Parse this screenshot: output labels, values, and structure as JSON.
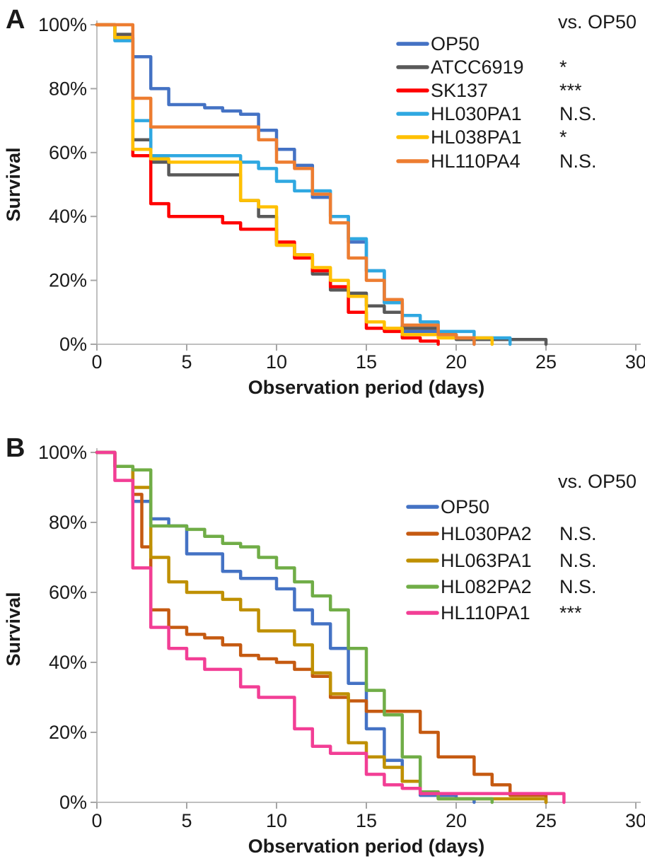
{
  "figure": {
    "background_color": "#ffffff",
    "axis_line_color": "#bfbfbf",
    "tick_color": "#a6a6a6",
    "text_color": "#1a1a1a"
  },
  "chart_data": [
    {
      "type": "line",
      "subtype": "kaplan-meier-step-survival",
      "panel_label": "A",
      "title": "",
      "xlabel": "Observation period (days)",
      "ylabel": "Survival",
      "xlim": [
        0,
        30
      ],
      "ylim": [
        0,
        100
      ],
      "x_tick_labels": [
        "0",
        "5",
        "10",
        "15",
        "20",
        "25",
        "30"
      ],
      "y_tick_labels": [
        "100%",
        "80%",
        "60%",
        "40%",
        "20%",
        "0%"
      ],
      "grid": "off",
      "legend_position": "upper right",
      "legend_header": "vs. OP50",
      "series": [
        {
          "name": "OP50",
          "color": "#4472C4",
          "significance": "",
          "steps": [
            [
              0,
              100
            ],
            [
              1,
              96
            ],
            [
              2,
              90
            ],
            [
              3,
              80
            ],
            [
              4,
              75
            ],
            [
              6,
              74
            ],
            [
              7,
              73
            ],
            [
              8,
              72
            ],
            [
              9,
              67
            ],
            [
              10,
              61
            ],
            [
              11,
              56
            ],
            [
              12,
              46
            ],
            [
              13,
              40
            ],
            [
              14,
              32
            ],
            [
              15,
              23
            ],
            [
              16,
              13
            ],
            [
              17,
              4
            ],
            [
              19,
              3
            ],
            [
              20,
              2
            ],
            [
              21,
              0
            ]
          ]
        },
        {
          "name": "ATCC6919",
          "color": "#595959",
          "significance": "*",
          "steps": [
            [
              0,
              100
            ],
            [
              1,
              97
            ],
            [
              2,
              64
            ],
            [
              3,
              57
            ],
            [
              4,
              53
            ],
            [
              8,
              45
            ],
            [
              9,
              40
            ],
            [
              10,
              31
            ],
            [
              11,
              28
            ],
            [
              12,
              22
            ],
            [
              13,
              17
            ],
            [
              14,
              16
            ],
            [
              15,
              12
            ],
            [
              16,
              10
            ],
            [
              17,
              5
            ],
            [
              19,
              3
            ],
            [
              20,
              1.5
            ],
            [
              25,
              0
            ]
          ]
        },
        {
          "name": "SK137",
          "color": "#FF0000",
          "significance": "***",
          "steps": [
            [
              0,
              100
            ],
            [
              1,
              96
            ],
            [
              2,
              59
            ],
            [
              3,
              44
            ],
            [
              4,
              40
            ],
            [
              7,
              38
            ],
            [
              8,
              36
            ],
            [
              10,
              32
            ],
            [
              11,
              27
            ],
            [
              12,
              23
            ],
            [
              13,
              18
            ],
            [
              14,
              10
            ],
            [
              15,
              5
            ],
            [
              16,
              4
            ],
            [
              17,
              2
            ],
            [
              18,
              1
            ],
            [
              19,
              0
            ]
          ]
        },
        {
          "name": "HL030PA1",
          "color": "#2FA8E1",
          "significance": "N.S.",
          "steps": [
            [
              0,
              100
            ],
            [
              1,
              95
            ],
            [
              2,
              70
            ],
            [
              3,
              59
            ],
            [
              8,
              57
            ],
            [
              9,
              55
            ],
            [
              10,
              51
            ],
            [
              11,
              48
            ],
            [
              13,
              40
            ],
            [
              14,
              33
            ],
            [
              15,
              23
            ],
            [
              16,
              13
            ],
            [
              17,
              9
            ],
            [
              18,
              7
            ],
            [
              19,
              4
            ],
            [
              21,
              2
            ],
            [
              23,
              0
            ]
          ]
        },
        {
          "name": "HL038PA1",
          "color": "#FFC000",
          "significance": "*",
          "steps": [
            [
              0,
              100
            ],
            [
              1,
              96
            ],
            [
              2,
              61
            ],
            [
              3,
              58
            ],
            [
              4,
              57
            ],
            [
              8,
              45
            ],
            [
              9,
              43
            ],
            [
              10,
              31
            ],
            [
              11,
              28
            ],
            [
              12,
              24
            ],
            [
              13,
              20
            ],
            [
              14,
              15
            ],
            [
              15,
              7
            ],
            [
              16,
              5
            ],
            [
              17,
              3
            ],
            [
              19,
              2
            ],
            [
              22,
              0
            ]
          ]
        },
        {
          "name": "HL110PA4",
          "color": "#ED7D31",
          "significance": "N.S.",
          "steps": [
            [
              0,
              100
            ],
            [
              2,
              77
            ],
            [
              3,
              68
            ],
            [
              9,
              64
            ],
            [
              10,
              57
            ],
            [
              11,
              55
            ],
            [
              12,
              47
            ],
            [
              13,
              38
            ],
            [
              14,
              27
            ],
            [
              15,
              20
            ],
            [
              16,
              14
            ],
            [
              17,
              6
            ],
            [
              19,
              3
            ],
            [
              20,
              2
            ],
            [
              21,
              0
            ]
          ]
        }
      ]
    },
    {
      "type": "line",
      "subtype": "kaplan-meier-step-survival",
      "panel_label": "B",
      "title": "",
      "xlabel": "Observation period (days)",
      "ylabel": "Survival",
      "xlim": [
        0,
        30
      ],
      "ylim": [
        0,
        100
      ],
      "x_tick_labels": [
        "0",
        "5",
        "10",
        "15",
        "20",
        "25",
        "30"
      ],
      "y_tick_labels": [
        "100%",
        "80%",
        "60%",
        "40%",
        "20%",
        "0%"
      ],
      "grid": "off",
      "legend_position": "upper right",
      "legend_header": "vs. OP50",
      "series": [
        {
          "name": "OP50",
          "color": "#4472C4",
          "significance": "",
          "steps": [
            [
              0,
              100
            ],
            [
              1,
              96
            ],
            [
              2,
              86
            ],
            [
              3,
              81
            ],
            [
              4,
              79
            ],
            [
              5,
              71
            ],
            [
              7,
              66
            ],
            [
              8,
              64
            ],
            [
              10,
              61
            ],
            [
              11,
              55
            ],
            [
              12,
              51
            ],
            [
              13,
              44
            ],
            [
              14,
              34
            ],
            [
              15,
              21
            ],
            [
              16,
              12
            ],
            [
              17,
              6
            ],
            [
              18,
              2
            ],
            [
              20,
              1
            ],
            [
              21,
              0
            ]
          ]
        },
        {
          "name": "HL030PA2",
          "color": "#C55A11",
          "significance": "N.S.",
          "steps": [
            [
              0,
              100
            ],
            [
              1,
              96
            ],
            [
              2,
              88
            ],
            [
              2.5,
              73
            ],
            [
              3,
              55
            ],
            [
              4,
              50
            ],
            [
              5,
              48
            ],
            [
              6,
              47
            ],
            [
              7,
              45
            ],
            [
              8,
              42
            ],
            [
              9,
              41
            ],
            [
              10,
              40
            ],
            [
              11,
              38
            ],
            [
              12,
              36
            ],
            [
              13,
              30
            ],
            [
              14,
              29
            ],
            [
              15,
              26
            ],
            [
              18,
              20
            ],
            [
              19,
              13
            ],
            [
              21,
              8
            ],
            [
              22,
              5
            ],
            [
              23,
              2
            ],
            [
              25,
              0
            ]
          ]
        },
        {
          "name": "HL063PA1",
          "color": "#BF9000",
          "significance": "N.S.",
          "steps": [
            [
              0,
              100
            ],
            [
              1,
              96
            ],
            [
              2,
              90
            ],
            [
              3,
              70
            ],
            [
              4,
              63
            ],
            [
              5,
              60
            ],
            [
              7,
              58
            ],
            [
              8,
              55
            ],
            [
              9,
              49
            ],
            [
              11,
              45
            ],
            [
              12,
              37
            ],
            [
              13,
              31
            ],
            [
              14,
              17
            ],
            [
              15,
              13
            ],
            [
              16,
              10
            ],
            [
              17,
              6
            ],
            [
              18,
              3
            ],
            [
              19,
              1
            ],
            [
              25,
              0
            ]
          ]
        },
        {
          "name": "HL082PA2",
          "color": "#70AD47",
          "significance": "N.S.",
          "steps": [
            [
              0,
              100
            ],
            [
              1,
              96
            ],
            [
              2,
              95
            ],
            [
              3,
              79
            ],
            [
              5,
              78
            ],
            [
              6,
              76
            ],
            [
              7,
              74
            ],
            [
              8,
              73
            ],
            [
              9,
              70
            ],
            [
              10,
              67
            ],
            [
              11,
              63
            ],
            [
              12,
              59
            ],
            [
              13,
              55
            ],
            [
              14,
              44
            ],
            [
              15,
              32
            ],
            [
              16,
              25
            ],
            [
              17,
              13
            ],
            [
              18,
              3
            ],
            [
              19,
              1
            ],
            [
              22,
              0
            ]
          ]
        },
        {
          "name": "HL110PA1",
          "color": "#F23E95",
          "significance": "***",
          "steps": [
            [
              0,
              100
            ],
            [
              1,
              92
            ],
            [
              2,
              67
            ],
            [
              3,
              50
            ],
            [
              4,
              44
            ],
            [
              5,
              41
            ],
            [
              6,
              38
            ],
            [
              8,
              33
            ],
            [
              9,
              30
            ],
            [
              11,
              21
            ],
            [
              12,
              16
            ],
            [
              13,
              14
            ],
            [
              15,
              8
            ],
            [
              16,
              5
            ],
            [
              17,
              4
            ],
            [
              18,
              2.5
            ],
            [
              26,
              0
            ]
          ]
        }
      ]
    }
  ]
}
